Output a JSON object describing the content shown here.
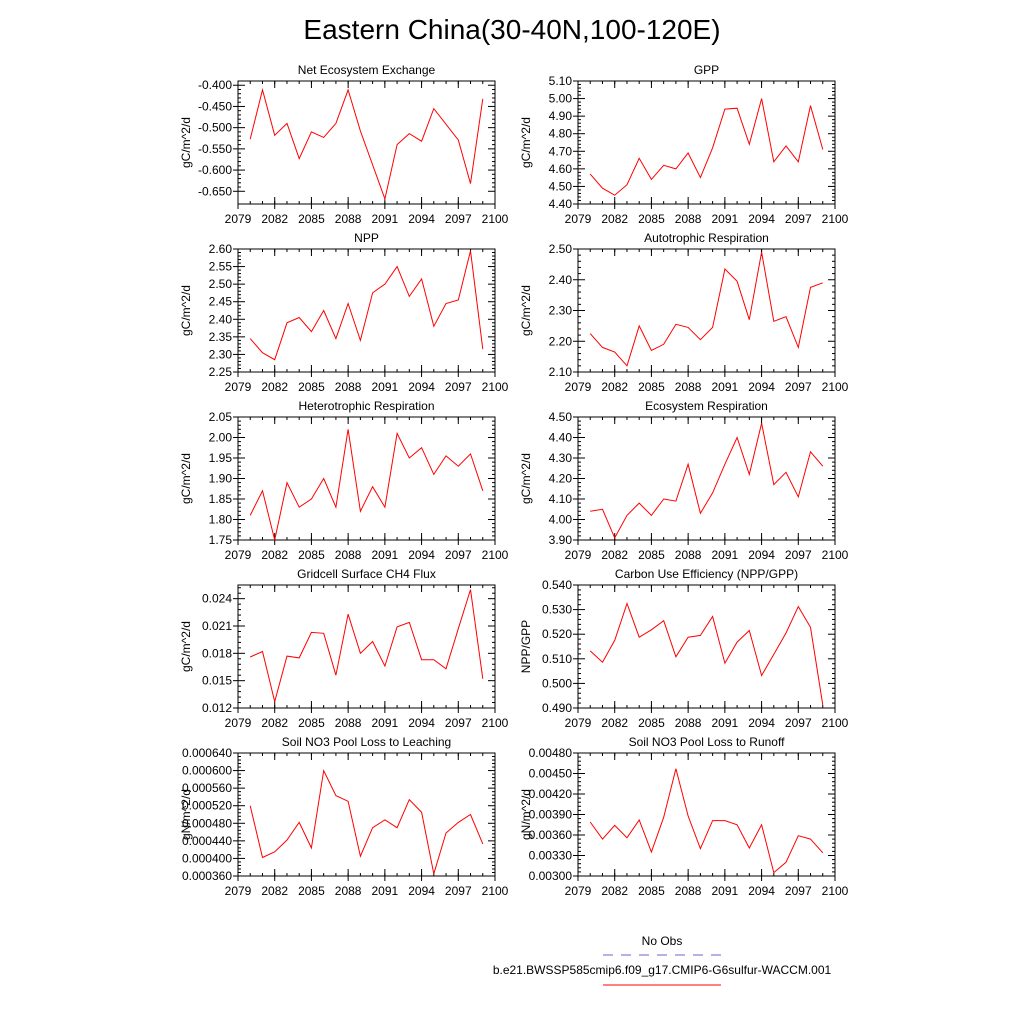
{
  "figure": {
    "title": "Eastern China(30-40N,100-120E)",
    "series_color": "#ff0000",
    "obs_color": "#6666cc"
  },
  "legend": {
    "entries": [
      {
        "label": "No Obs",
        "style": "dashed",
        "color": "#6666cc"
      },
      {
        "label": "b.e21.BWSSP585cmip6.f09_g17.CMIP6-G6sulfur-WACCM.001",
        "style": "solid",
        "color": "#ff0000"
      }
    ]
  },
  "chart_data": [
    {
      "type": "line",
      "title": "Net Ecosystem Exchange",
      "ylabel": "gC/m^2/d",
      "xlim": [
        2079,
        2100
      ],
      "xticks": [
        "2079",
        "2082",
        "2085",
        "2088",
        "2091",
        "2094",
        "2097",
        "2100"
      ],
      "ylim": [
        -0.68,
        -0.39
      ],
      "yticks": [
        "-0.400",
        "-0.450",
        "-0.500",
        "-0.550",
        "-0.600",
        "-0.650"
      ],
      "x": [
        2080,
        2081,
        2082,
        2083,
        2084,
        2085,
        2086,
        2087,
        2088,
        2089,
        2091,
        2092,
        2093,
        2094,
        2095,
        2097,
        2098,
        2099
      ],
      "series": [
        {
          "name": "b.e21.BWSSP585cmip6.f09_g17.CMIP6-G6sulfur-WACCM.001",
          "values": [
            -0.527,
            -0.411,
            -0.518,
            -0.49,
            -0.573,
            -0.51,
            -0.523,
            -0.49,
            -0.411,
            -0.508,
            -0.668,
            -0.54,
            -0.514,
            -0.532,
            -0.455,
            -0.529,
            -0.632,
            -0.432
          ]
        }
      ]
    },
    {
      "type": "line",
      "title": "GPP",
      "ylabel": "gC/m^2/d",
      "xlim": [
        2079,
        2100
      ],
      "xticks": [
        "2079",
        "2082",
        "2085",
        "2088",
        "2091",
        "2094",
        "2097",
        "2100"
      ],
      "ylim": [
        4.4,
        5.1
      ],
      "yticks": [
        "5.10",
        "5.00",
        "4.90",
        "4.80",
        "4.70",
        "4.60",
        "4.50",
        "4.40"
      ],
      "x": [
        2080,
        2081,
        2082,
        2083,
        2084,
        2085,
        2086,
        2087,
        2088,
        2089,
        2090,
        2091,
        2092,
        2093,
        2094,
        2095,
        2096,
        2097,
        2098,
        2099
      ],
      "series": [
        {
          "name": "b.e21.BWSSP585cmip6.f09_g17.CMIP6-G6sulfur-WACCM.001",
          "values": [
            4.57,
            4.49,
            4.45,
            4.51,
            4.66,
            4.54,
            4.62,
            4.6,
            4.69,
            4.55,
            4.72,
            4.94,
            4.945,
            4.74,
            5.0,
            4.64,
            4.73,
            4.64,
            4.96,
            4.71
          ]
        }
      ]
    },
    {
      "type": "line",
      "title": "NPP",
      "ylabel": "gC/m^2/d",
      "xlim": [
        2079,
        2100
      ],
      "xticks": [
        "2079",
        "2082",
        "2085",
        "2088",
        "2091",
        "2094",
        "2097",
        "2100"
      ],
      "ylim": [
        2.25,
        2.6
      ],
      "yticks": [
        "2.60",
        "2.55",
        "2.50",
        "2.45",
        "2.40",
        "2.35",
        "2.30",
        "2.25"
      ],
      "x": [
        2080,
        2081,
        2082,
        2083,
        2084,
        2085,
        2086,
        2087,
        2088,
        2089,
        2090,
        2091,
        2092,
        2093,
        2094,
        2095,
        2096,
        2097,
        2098,
        2099
      ],
      "series": [
        {
          "name": "b.e21.BWSSP585cmip6.f09_g17.CMIP6-G6sulfur-WACCM.001",
          "values": [
            2.345,
            2.305,
            2.285,
            2.39,
            2.405,
            2.365,
            2.425,
            2.345,
            2.445,
            2.34,
            2.475,
            2.5,
            2.55,
            2.465,
            2.515,
            2.38,
            2.445,
            2.455,
            2.595,
            2.315
          ]
        }
      ]
    },
    {
      "type": "line",
      "title": "Autotrophic Respiration",
      "ylabel": "gC/m^2/d",
      "xlim": [
        2079,
        2100
      ],
      "xticks": [
        "2079",
        "2082",
        "2085",
        "2088",
        "2091",
        "2094",
        "2097",
        "2100"
      ],
      "ylim": [
        2.1,
        2.5
      ],
      "yticks": [
        "2.50",
        "2.40",
        "2.30",
        "2.20",
        "2.10"
      ],
      "x": [
        2080,
        2081,
        2082,
        2083,
        2084,
        2085,
        2086,
        2087,
        2088,
        2089,
        2090,
        2091,
        2092,
        2093,
        2094,
        2095,
        2096,
        2097,
        2098,
        2099
      ],
      "series": [
        {
          "name": "b.e21.BWSSP585cmip6.f09_g17.CMIP6-G6sulfur-WACCM.001",
          "values": [
            2.225,
            2.18,
            2.165,
            2.12,
            2.25,
            2.17,
            2.19,
            2.255,
            2.245,
            2.205,
            2.245,
            2.435,
            2.395,
            2.27,
            2.49,
            2.265,
            2.28,
            2.18,
            2.375,
            2.39
          ]
        }
      ]
    },
    {
      "type": "line",
      "title": "Heterotrophic Respiration",
      "ylabel": "gC/m^2/d",
      "xlim": [
        2079,
        2100
      ],
      "xticks": [
        "2079",
        "2082",
        "2085",
        "2088",
        "2091",
        "2094",
        "2097",
        "2100"
      ],
      "ylim": [
        1.75,
        2.05
      ],
      "yticks": [
        "2.05",
        "2.00",
        "1.95",
        "1.90",
        "1.85",
        "1.80",
        "1.75"
      ],
      "x": [
        2080,
        2081,
        2082,
        2083,
        2084,
        2085,
        2086,
        2087,
        2088,
        2089,
        2090,
        2091,
        2092,
        2093,
        2094,
        2095,
        2096,
        2097,
        2098,
        2099
      ],
      "series": [
        {
          "name": "b.e21.BWSSP585cmip6.f09_g17.CMIP6-G6sulfur-WACCM.001",
          "values": [
            1.81,
            1.87,
            1.75,
            1.89,
            1.83,
            1.85,
            1.9,
            1.83,
            2.02,
            1.82,
            1.88,
            1.83,
            2.01,
            1.95,
            1.975,
            1.91,
            1.955,
            1.93,
            1.96,
            1.87
          ]
        }
      ]
    },
    {
      "type": "line",
      "title": "Ecosystem Respiration",
      "ylabel": "gC/m^2/d",
      "xlim": [
        2079,
        2100
      ],
      "xticks": [
        "2079",
        "2082",
        "2085",
        "2088",
        "2091",
        "2094",
        "2097",
        "2100"
      ],
      "ylim": [
        3.9,
        4.5
      ],
      "yticks": [
        "4.50",
        "4.40",
        "4.30",
        "4.20",
        "4.10",
        "4.00",
        "3.90"
      ],
      "x": [
        2080,
        2081,
        2082,
        2083,
        2084,
        2085,
        2086,
        2087,
        2088,
        2089,
        2090,
        2091,
        2092,
        2093,
        2094,
        2095,
        2096,
        2097,
        2098,
        2099
      ],
      "series": [
        {
          "name": "b.e21.BWSSP585cmip6.f09_g17.CMIP6-G6sulfur-WACCM.001",
          "values": [
            4.04,
            4.05,
            3.91,
            4.02,
            4.08,
            4.02,
            4.1,
            4.09,
            4.27,
            4.03,
            4.13,
            4.27,
            4.4,
            4.22,
            4.47,
            4.17,
            4.23,
            4.11,
            4.33,
            4.26
          ]
        }
      ]
    },
    {
      "type": "line",
      "title": "Gridcell Surface CH4 Flux",
      "ylabel": "gC/m^2/d",
      "xlim": [
        2079,
        2100
      ],
      "xticks": [
        "2079",
        "2082",
        "2085",
        "2088",
        "2091",
        "2094",
        "2097",
        "2100"
      ],
      "ylim": [
        0.012,
        0.0255
      ],
      "yticks": [
        "0.024",
        "0.021",
        "0.018",
        "0.015",
        "0.012"
      ],
      "x": [
        2080,
        2081,
        2082,
        2083,
        2084,
        2085,
        2086,
        2087,
        2088,
        2089,
        2090,
        2091,
        2092,
        2093,
        2094,
        2095,
        2096,
        2097,
        2098,
        2099
      ],
      "series": [
        {
          "name": "b.e21.BWSSP585cmip6.f09_g17.CMIP6-G6sulfur-WACCM.001",
          "values": [
            0.0176,
            0.0182,
            0.0127,
            0.0177,
            0.0175,
            0.0203,
            0.0202,
            0.0156,
            0.0223,
            0.018,
            0.0193,
            0.0166,
            0.0209,
            0.0214,
            0.0173,
            0.0173,
            0.0163,
            0.0207,
            0.025,
            0.0152
          ]
        }
      ]
    },
    {
      "type": "line",
      "title": "Carbon Use Efficiency (NPP/GPP)",
      "ylabel": "NPP/GPP",
      "xlim": [
        2079,
        2100
      ],
      "xticks": [
        "2079",
        "2082",
        "2085",
        "2088",
        "2091",
        "2094",
        "2097",
        "2100"
      ],
      "ylim": [
        0.49,
        0.54
      ],
      "yticks": [
        "0.540",
        "0.530",
        "0.520",
        "0.510",
        "0.500",
        "0.490"
      ],
      "x": [
        2080,
        2081,
        2082,
        2083,
        2084,
        2085,
        2086,
        2087,
        2088,
        2089,
        2090,
        2091,
        2092,
        2093,
        2094,
        2095,
        2096,
        2097,
        2098,
        2099
      ],
      "series": [
        {
          "name": "b.e21.BWSSP585cmip6.f09_g17.CMIP6-G6sulfur-WACCM.001",
          "values": [
            0.5132,
            0.5086,
            0.5175,
            0.5325,
            0.5188,
            0.5218,
            0.5255,
            0.5108,
            0.5188,
            0.5195,
            0.5272,
            0.5082,
            0.5168,
            0.5215,
            0.5032,
            0.5118,
            0.5205,
            0.5312,
            0.5228,
            0.4912
          ]
        }
      ]
    },
    {
      "type": "line",
      "title": "Soil NO3 Pool Loss to Leaching",
      "ylabel": "gN/m^2/d",
      "xlim": [
        2079,
        2100
      ],
      "xticks": [
        "2079",
        "2082",
        "2085",
        "2088",
        "2091",
        "2094",
        "2097",
        "2100"
      ],
      "ylim": [
        0.00036,
        0.00064
      ],
      "yticks": [
        "0.000640",
        "0.000600",
        "0.000560",
        "0.000520",
        "0.000480",
        "0.000440",
        "0.000400",
        "0.000360"
      ],
      "x": [
        2080,
        2081,
        2082,
        2083,
        2084,
        2085,
        2086,
        2087,
        2088,
        2089,
        2090,
        2091,
        2092,
        2093,
        2094,
        2095,
        2096,
        2097,
        2098,
        2099
      ],
      "series": [
        {
          "name": "b.e21.BWSSP585cmip6.f09_g17.CMIP6-G6sulfur-WACCM.001",
          "values": [
            0.00052,
            0.000402,
            0.000415,
            0.000442,
            0.000482,
            0.000424,
            0.0006,
            0.000543,
            0.00053,
            0.000405,
            0.00047,
            0.000488,
            0.00047,
            0.000534,
            0.000505,
            0.000365,
            0.000458,
            0.000482,
            0.0005,
            0.000433
          ]
        }
      ]
    },
    {
      "type": "line",
      "title": "Soil NO3 Pool Loss to Runoff",
      "ylabel": "gN/m^2/d",
      "xlim": [
        2079,
        2100
      ],
      "xticks": [
        "2079",
        "2082",
        "2085",
        "2088",
        "2091",
        "2094",
        "2097",
        "2100"
      ],
      "ylim": [
        0.003,
        0.0048
      ],
      "yticks": [
        "0.00480",
        "0.00450",
        "0.00420",
        "0.00390",
        "0.00360",
        "0.00330",
        "0.00300"
      ],
      "x": [
        2080,
        2081,
        2082,
        2083,
        2084,
        2085,
        2086,
        2087,
        2088,
        2089,
        2090,
        2091,
        2092,
        2093,
        2094,
        2095,
        2096,
        2097,
        2098,
        2099
      ],
      "series": [
        {
          "name": "b.e21.BWSSP585cmip6.f09_g17.CMIP6-G6sulfur-WACCM.001",
          "values": [
            0.00379,
            0.00354,
            0.00374,
            0.00356,
            0.00382,
            0.00335,
            0.00386,
            0.00457,
            0.00388,
            0.0034,
            0.00381,
            0.00381,
            0.00375,
            0.00341,
            0.00375,
            0.00305,
            0.0032,
            0.00359,
            0.00354,
            0.00334
          ]
        }
      ]
    }
  ]
}
